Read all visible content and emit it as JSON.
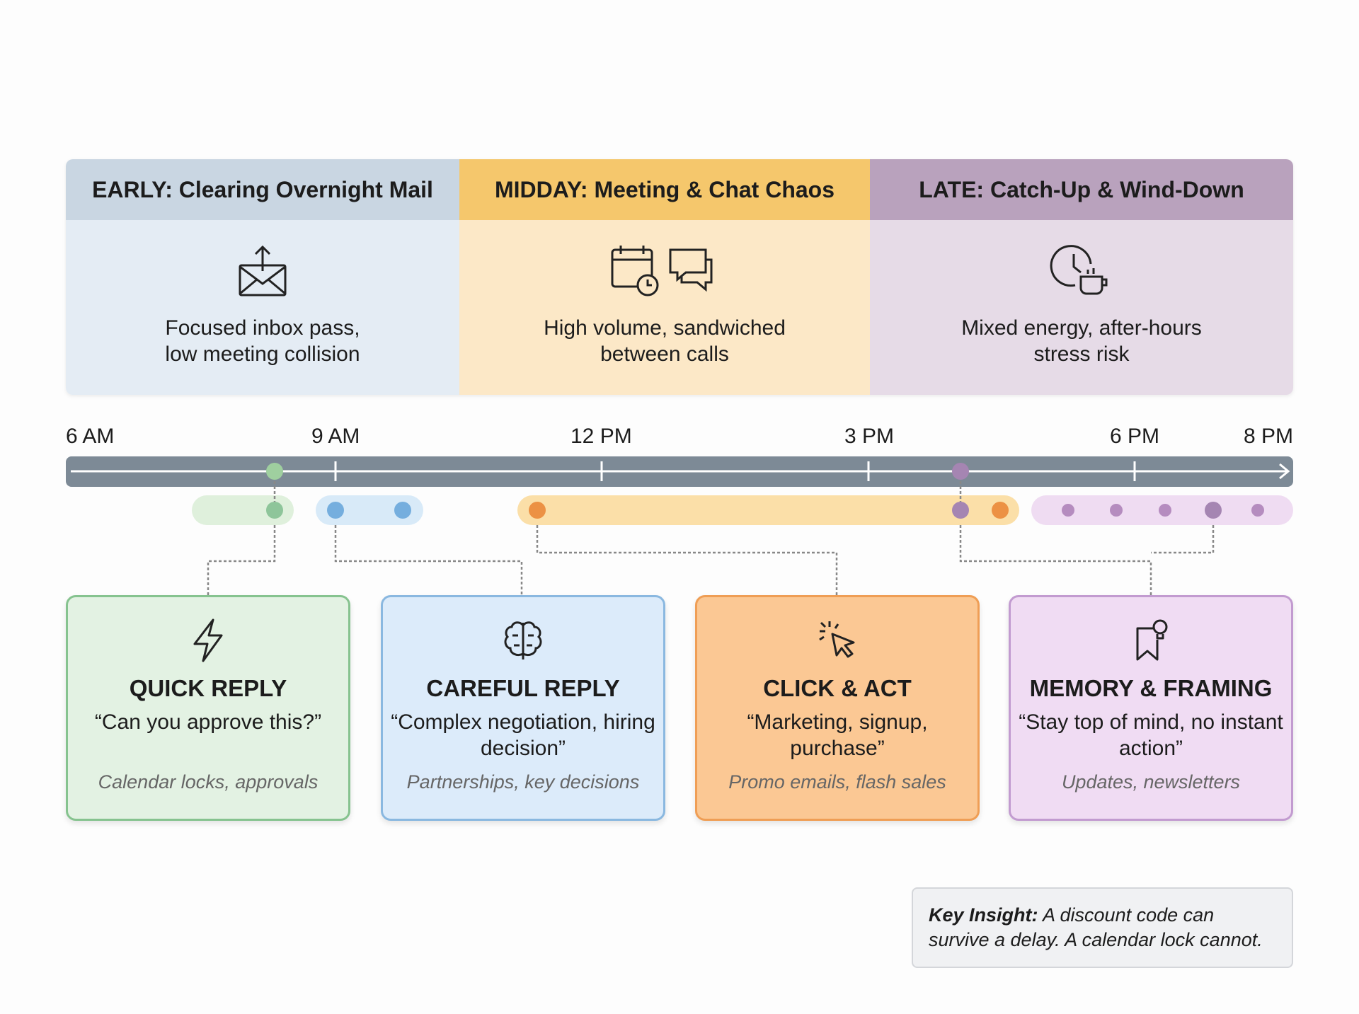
{
  "phases": [
    {
      "title": "EARLY: Clearing Overnight Mail",
      "icon": "envelope-upload-icon",
      "desc1": "Focused inbox pass,",
      "desc2": "low meeting collision",
      "header_color": "#c9d6e2",
      "body_color": "#e4ecf4"
    },
    {
      "title": "MIDDAY: Meeting & Chat Chaos",
      "icon": "calendar-chat-icon",
      "desc1": "High volume, sandwiched",
      "desc2": "between calls",
      "header_color": "#f5c76c",
      "body_color": "#fce8c7"
    },
    {
      "title": "LATE: Catch-Up & Wind-Down",
      "icon": "clock-coffee-icon",
      "desc1": "Mixed energy, after-hours",
      "desc2": "stress risk",
      "header_color": "#b9a2bd",
      "body_color": "#e6dbe7"
    }
  ],
  "timeline": {
    "labels": [
      "6 AM",
      "9 AM",
      "12 PM",
      "3 PM",
      "6 PM",
      "8 PM"
    ]
  },
  "cards": [
    {
      "title": "QUICK REPLY",
      "quote": "“Can you approve this?”",
      "sub": "Calendar locks, approvals",
      "icon": "lightning-icon",
      "color": "#86c38f",
      "bg": "#e3f2e3"
    },
    {
      "title": "CAREFUL REPLY",
      "quote": "“Complex negotiation, hiring decision”",
      "sub": "Partnerships, key decisions",
      "icon": "brain-icon",
      "color": "#8ab8e0",
      "bg": "#dcebfa"
    },
    {
      "title": "CLICK & ACT",
      "quote": "“Marketing, signup, purchase”",
      "sub": "Promo emails, flash sales",
      "icon": "cursor-click-icon",
      "color": "#ef9e55",
      "bg": "#fbc894"
    },
    {
      "title": "MEMORY & FRAMING",
      "quote": "“Stay top of mind, no instant action”",
      "sub": "Updates, newsletters",
      "icon": "bookmark-lightbulb-icon",
      "color": "#c29bd0",
      "bg": "#f0dcf3"
    }
  ],
  "insight": {
    "label": "Key Insight:",
    "text": " A discount code can survive a delay. A calendar lock cannot."
  }
}
